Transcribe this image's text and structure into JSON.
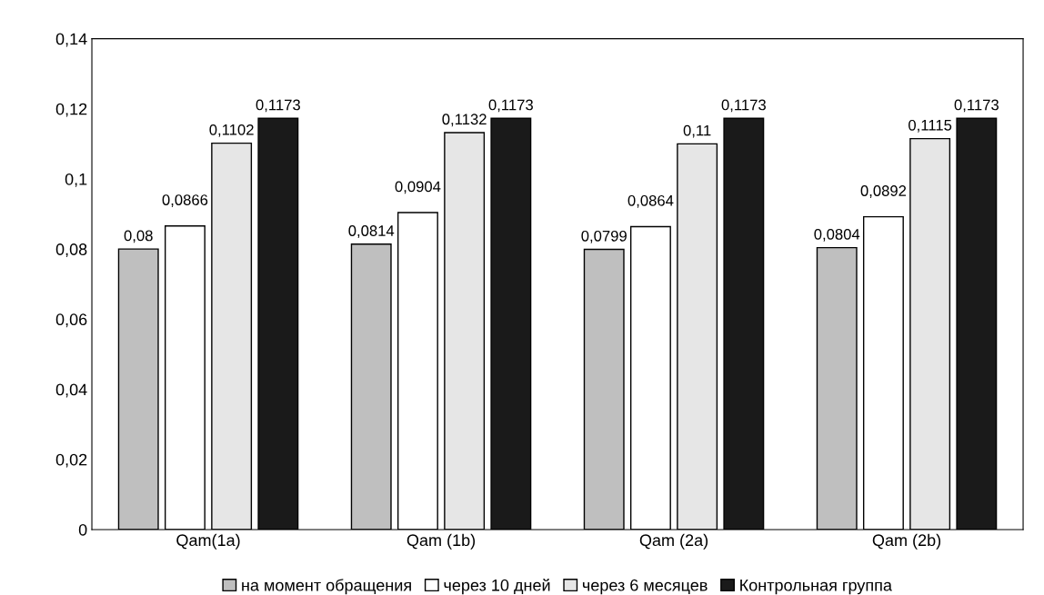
{
  "chart_data": {
    "type": "bar",
    "categories": [
      "Qam(1a)",
      "Qam (1b)",
      "Qam (2a)",
      "Qam (2b)"
    ],
    "series": [
      {
        "name": "на момент обращения",
        "color": "#bfbfbf",
        "values": [
          0.08,
          0.0814,
          0.0799,
          0.0804
        ],
        "value_labels": [
          "0,08",
          "0,0814",
          "0,0799",
          "0,0804"
        ]
      },
      {
        "name": "через 10 дней",
        "color": "#ffffff",
        "values": [
          0.0866,
          0.0904,
          0.0864,
          0.0892
        ],
        "value_labels": [
          "0,0866",
          "0,0904",
          "0,0864",
          "0,0892"
        ]
      },
      {
        "name": "через 6 месяцев",
        "color": "#e6e6e6",
        "values": [
          0.1102,
          0.1132,
          0.11,
          0.1115
        ],
        "value_labels": [
          "0,1102",
          "0,1132",
          "0,11",
          "0,1115"
        ]
      },
      {
        "name": "Контрольная группа",
        "color": "#1a1a1a",
        "values": [
          0.1173,
          0.1173,
          0.1173,
          0.1173
        ],
        "value_labels": [
          "0,1173",
          "0,1173",
          "0,1173",
          "0,1173"
        ]
      }
    ],
    "ylim": [
      0,
      0.14
    ],
    "yticks": [
      {
        "value": 0,
        "label": "0"
      },
      {
        "value": 0.02,
        "label": "0,02"
      },
      {
        "value": 0.04,
        "label": "0,04"
      },
      {
        "value": 0.06,
        "label": "0,06"
      },
      {
        "value": 0.08,
        "label": "0,08"
      },
      {
        "value": 0.1,
        "label": "0,1"
      },
      {
        "value": 0.12,
        "label": "0,12"
      },
      {
        "value": 0.14,
        "label": "0,14"
      }
    ],
    "grid": false,
    "legend": "bottom"
  }
}
